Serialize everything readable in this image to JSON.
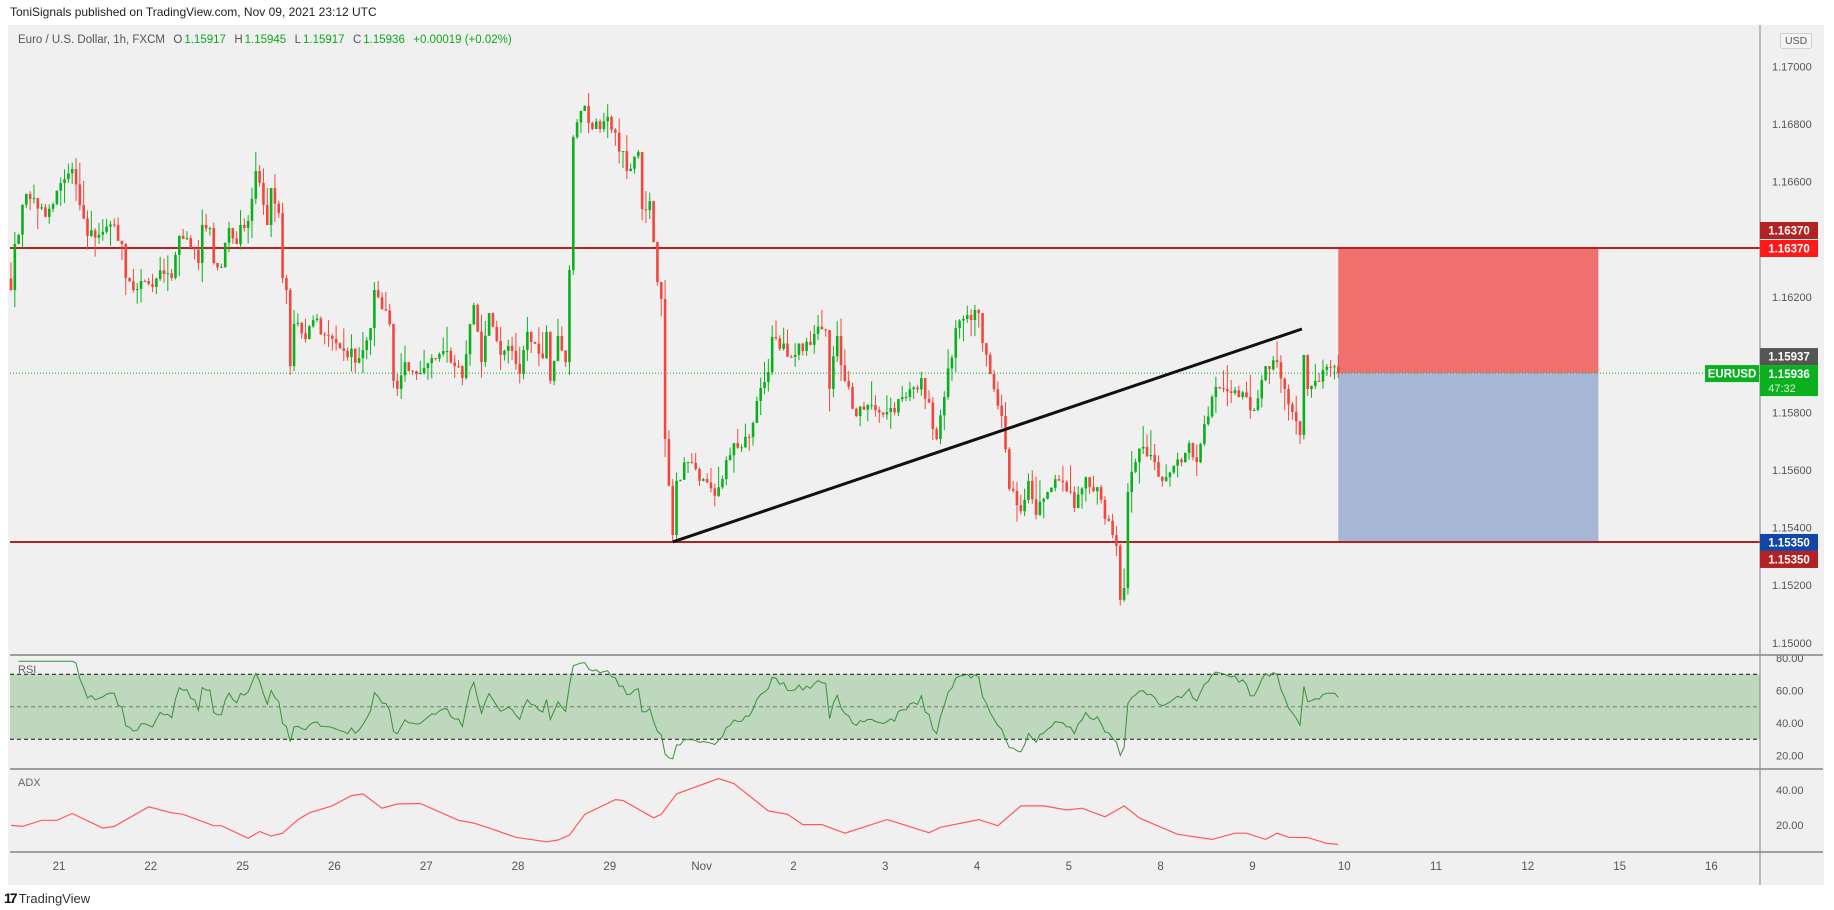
{
  "header": {
    "published": "ToniSignals published on TradingView.com, Nov 09, 2021 23:12 UTC"
  },
  "legend": {
    "symbol": "Euro / U.S. Dollar, 1h, FXCM",
    "o_label": "O",
    "o": "1.15917",
    "h_label": "H",
    "h": "1.15945",
    "l_label": "L",
    "l": "1.15917",
    "c_label": "C",
    "c": "1.15936",
    "change": "+0.00019 (+0.02%)"
  },
  "currency": "USD",
  "footer": {
    "logo_text": "TradingView",
    "logo_mark": "17"
  },
  "colors": {
    "up": "#0bb01f",
    "down": "#f2473f",
    "level": "#b22222",
    "rsi": "#3b8f3b",
    "adx": "#ff5a5a",
    "stop_zone": "#f07070",
    "target_zone": "#a6b7d6"
  },
  "chart_data": {
    "type": "candlestick",
    "symbol": "EURUSD",
    "timeframe": "1h",
    "ylim": [
      1.15,
      1.17
    ],
    "price_ticks": [
      "1.17000",
      "1.16800",
      "1.16600",
      "1.16200",
      "1.15800",
      "1.15600",
      "1.15400",
      "1.15200",
      "1.15000"
    ],
    "time_ticks": [
      {
        "label": "21",
        "day": 0
      },
      {
        "label": "22",
        "day": 1
      },
      {
        "label": "25",
        "day": 2
      },
      {
        "label": "26",
        "day": 3
      },
      {
        "label": "27",
        "day": 4
      },
      {
        "label": "28",
        "day": 5
      },
      {
        "label": "29",
        "day": 6
      },
      {
        "label": "Nov",
        "day": 7
      },
      {
        "label": "2",
        "day": 8
      },
      {
        "label": "3",
        "day": 9
      },
      {
        "label": "4",
        "day": 10
      },
      {
        "label": "5",
        "day": 11
      },
      {
        "label": "8",
        "day": 12
      },
      {
        "label": "9",
        "day": 13
      },
      {
        "label": "10",
        "day": 14
      },
      {
        "label": "11",
        "day": 15
      },
      {
        "label": "12",
        "day": 16
      },
      {
        "label": "15",
        "day": 17
      },
      {
        "label": "16",
        "day": 18
      }
    ],
    "first_bar_day_offset": -0.523,
    "close_anchors_bar_price": [
      [
        0,
        1.16224
      ],
      [
        1,
        1.16384
      ],
      [
        4,
        1.16557
      ],
      [
        6,
        1.16543
      ],
      [
        9,
        1.16478
      ],
      [
        14,
        1.16609
      ],
      [
        16,
        1.16644
      ],
      [
        18,
        1.16519
      ],
      [
        20,
        1.16412
      ],
      [
        24,
        1.16426
      ],
      [
        27,
        1.1645
      ],
      [
        29,
        1.16384
      ],
      [
        30,
        1.16266
      ],
      [
        32,
        1.16224
      ],
      [
        36,
        1.16245
      ],
      [
        40,
        1.1628
      ],
      [
        42,
        1.16266
      ],
      [
        44,
        1.16412
      ],
      [
        47,
        1.1637
      ],
      [
        49,
        1.16318
      ],
      [
        50,
        1.1645
      ],
      [
        52,
        1.16439
      ],
      [
        53,
        1.16318
      ],
      [
        55,
        1.16304
      ],
      [
        57,
        1.16439
      ],
      [
        59,
        1.16384
      ],
      [
        60,
        1.1645
      ],
      [
        62,
        1.16464
      ],
      [
        64,
        1.16637
      ],
      [
        65,
        1.16596
      ],
      [
        67,
        1.1645
      ],
      [
        68,
        1.16578
      ],
      [
        70,
        1.16491
      ],
      [
        71,
        1.16266
      ],
      [
        72,
        1.16224
      ],
      [
        73,
        1.1596
      ],
      [
        74,
        1.16106
      ],
      [
        77,
        1.16054
      ],
      [
        79,
        1.1612
      ],
      [
        83,
        1.16065
      ],
      [
        87,
        1.16013
      ],
      [
        91,
        1.15988
      ],
      [
        94,
        1.16092
      ],
      [
        95,
        1.16224
      ],
      [
        97,
        1.16158
      ],
      [
        99,
        1.16106
      ],
      [
        100,
        1.15909
      ],
      [
        101,
        1.15881
      ],
      [
        103,
        1.15974
      ],
      [
        106,
        1.15933
      ],
      [
        110,
        1.15988
      ],
      [
        114,
        1.16013
      ],
      [
        116,
        1.1596
      ],
      [
        118,
        1.15919
      ],
      [
        121,
        1.16172
      ],
      [
        123,
        1.15974
      ],
      [
        125,
        1.16144
      ],
      [
        128,
        1.15999
      ],
      [
        131,
        1.16013
      ],
      [
        133,
        1.15933
      ],
      [
        135,
        1.16079
      ],
      [
        139,
        1.15988
      ],
      [
        140,
        1.16079
      ],
      [
        141,
        1.15909
      ],
      [
        143,
        1.16065
      ],
      [
        145,
        1.15974
      ],
      [
        146,
        1.16294
      ],
      [
        147,
        1.16755
      ],
      [
        150,
        1.16863
      ],
      [
        152,
        1.16783
      ],
      [
        156,
        1.16825
      ],
      [
        158,
        1.1677
      ],
      [
        161,
        1.16637
      ],
      [
        164,
        1.16703
      ],
      [
        165,
        1.16505
      ],
      [
        167,
        1.16533
      ],
      [
        169,
        1.16252
      ],
      [
        170,
        1.16193
      ],
      [
        171,
        1.15707
      ],
      [
        173,
        1.15374
      ],
      [
        174,
        1.15562
      ],
      [
        177,
        1.15627
      ],
      [
        180,
        1.15562
      ],
      [
        184,
        1.1551
      ],
      [
        187,
        1.15634
      ],
      [
        189,
        1.15693
      ],
      [
        193,
        1.15714
      ],
      [
        195,
        1.15839
      ],
      [
        198,
        1.15939
      ],
      [
        199,
        1.16061
      ],
      [
        204,
        1.15992
      ],
      [
        210,
        1.16072
      ],
      [
        213,
        1.16085
      ],
      [
        214,
        1.15881
      ],
      [
        216,
        1.16065
      ],
      [
        218,
        1.15909
      ],
      [
        221,
        1.15787
      ],
      [
        225,
        1.15825
      ],
      [
        229,
        1.15801
      ],
      [
        234,
        1.15853
      ],
      [
        238,
        1.15919
      ],
      [
        242,
        1.15707
      ],
      [
        244,
        1.15853
      ],
      [
        247,
        1.16092
      ],
      [
        251,
        1.1612
      ],
      [
        253,
        1.16144
      ],
      [
        254,
        1.1604
      ],
      [
        256,
        1.15933
      ],
      [
        259,
        1.15787
      ],
      [
        261,
        1.15534
      ],
      [
        264,
        1.15457
      ],
      [
        266,
        1.15562
      ],
      [
        268,
        1.15444
      ],
      [
        271,
        1.15523
      ],
      [
        273,
        1.15568
      ],
      [
        277,
        1.15523
      ],
      [
        278,
        1.15468
      ],
      [
        281,
        1.15575
      ],
      [
        285,
        1.15496
      ],
      [
        286,
        1.1543
      ],
      [
        289,
        1.15336
      ],
      [
        290,
        1.15149
      ],
      [
        291,
        1.1519
      ],
      [
        292,
        1.15523
      ],
      [
        294,
        1.15627
      ],
      [
        296,
        1.1568
      ],
      [
        299,
        1.15627
      ],
      [
        301,
        1.15562
      ],
      [
        306,
        1.15627
      ],
      [
        308,
        1.15693
      ],
      [
        310,
        1.15627
      ],
      [
        312,
        1.15759
      ],
      [
        315,
        1.15888
      ],
      [
        319,
        1.15867
      ],
      [
        323,
        1.15853
      ],
      [
        325,
        1.15808
      ],
      [
        328,
        1.1596
      ],
      [
        331,
        1.15974
      ],
      [
        333,
        1.15881
      ],
      [
        335,
        1.15801
      ],
      [
        337,
        1.15721
      ],
      [
        338,
        1.15999
      ],
      [
        339,
        1.15881
      ],
      [
        341,
        1.15909
      ],
      [
        343,
        1.15947
      ],
      [
        347,
        1.15936
      ]
    ],
    "horizontal_levels": [
      {
        "price": 1.1637,
        "label_top": "1.16370",
        "label_main": "1.16370"
      },
      {
        "price": 1.1535,
        "label_top": "1.15350",
        "label_main": "1.15350"
      }
    ],
    "trendline": {
      "from": [
        173,
        1.1535
      ],
      "to": [
        337.5,
        1.16089
      ]
    },
    "position": {
      "type": "short",
      "from_bar": 347,
      "to_bar": 415,
      "entry": 1.15936,
      "stop": 1.1637,
      "target": 1.1535
    },
    "last_price": {
      "symbol_label": "EURUSD",
      "price": "1.15936",
      "countdown": "47:32",
      "prev_label": "1.15937",
      "value": 1.15936
    },
    "rsi": {
      "label": "RSI",
      "period": 14,
      "upper": 70,
      "middle": 50,
      "lower": 30,
      "ticks": [
        "80.00",
        "60.00",
        "40.00",
        "20.00"
      ],
      "tick_values": [
        80,
        60,
        40,
        20
      ]
    },
    "adx": {
      "label": "ADX",
      "ticks": [
        "40.00",
        "20.00"
      ],
      "tick_values": [
        40,
        20
      ],
      "anchors_bar_value": [
        [
          0,
          19.8
        ],
        [
          3,
          19.2
        ],
        [
          8,
          22.7
        ],
        [
          12,
          22.7
        ],
        [
          16,
          26.6
        ],
        [
          24,
          18.2
        ],
        [
          27,
          19.2
        ],
        [
          36,
          30.4
        ],
        [
          42,
          27
        ],
        [
          45,
          26.1
        ],
        [
          53,
          19.6
        ],
        [
          55,
          19.6
        ],
        [
          62,
          12.4
        ],
        [
          65,
          16.3
        ],
        [
          68,
          13.7
        ],
        [
          71,
          15.3
        ],
        [
          75,
          23.1
        ],
        [
          78,
          27
        ],
        [
          84,
          31
        ],
        [
          89,
          36.8
        ],
        [
          92,
          37.8
        ],
        [
          97,
          29.6
        ],
        [
          101,
          32
        ],
        [
          107,
          32.3
        ],
        [
          117,
          22.7
        ],
        [
          121,
          21.1
        ],
        [
          125,
          18.2
        ],
        [
          132,
          13
        ],
        [
          140,
          10.4
        ],
        [
          143,
          11.4
        ],
        [
          146,
          14.3
        ],
        [
          150,
          26.1
        ],
        [
          158,
          34.5
        ],
        [
          160,
          34
        ],
        [
          168,
          24.1
        ],
        [
          170,
          26.1
        ],
        [
          174,
          37.8
        ],
        [
          185,
          46.6
        ],
        [
          189,
          43.7
        ],
        [
          198,
          28
        ],
        [
          203,
          26.1
        ],
        [
          207,
          20.2
        ],
        [
          212,
          20.2
        ],
        [
          218,
          15.3
        ],
        [
          229,
          23.1
        ],
        [
          232,
          21.1
        ],
        [
          240,
          15.6
        ],
        [
          243,
          18.7
        ],
        [
          253,
          23.1
        ],
        [
          258,
          19.6
        ],
        [
          264,
          30.9
        ],
        [
          270,
          30.9
        ],
        [
          276,
          28.6
        ],
        [
          280,
          29.6
        ],
        [
          286,
          24.7
        ],
        [
          291,
          30.9
        ],
        [
          295,
          24
        ],
        [
          305,
          14.7
        ],
        [
          314,
          11.8
        ],
        [
          320,
          15.3
        ],
        [
          323,
          15.3
        ],
        [
          328,
          11.8
        ],
        [
          331,
          15.3
        ],
        [
          334,
          13
        ],
        [
          339,
          12.8
        ],
        [
          344,
          9.5
        ],
        [
          347,
          8.9
        ]
      ]
    }
  }
}
